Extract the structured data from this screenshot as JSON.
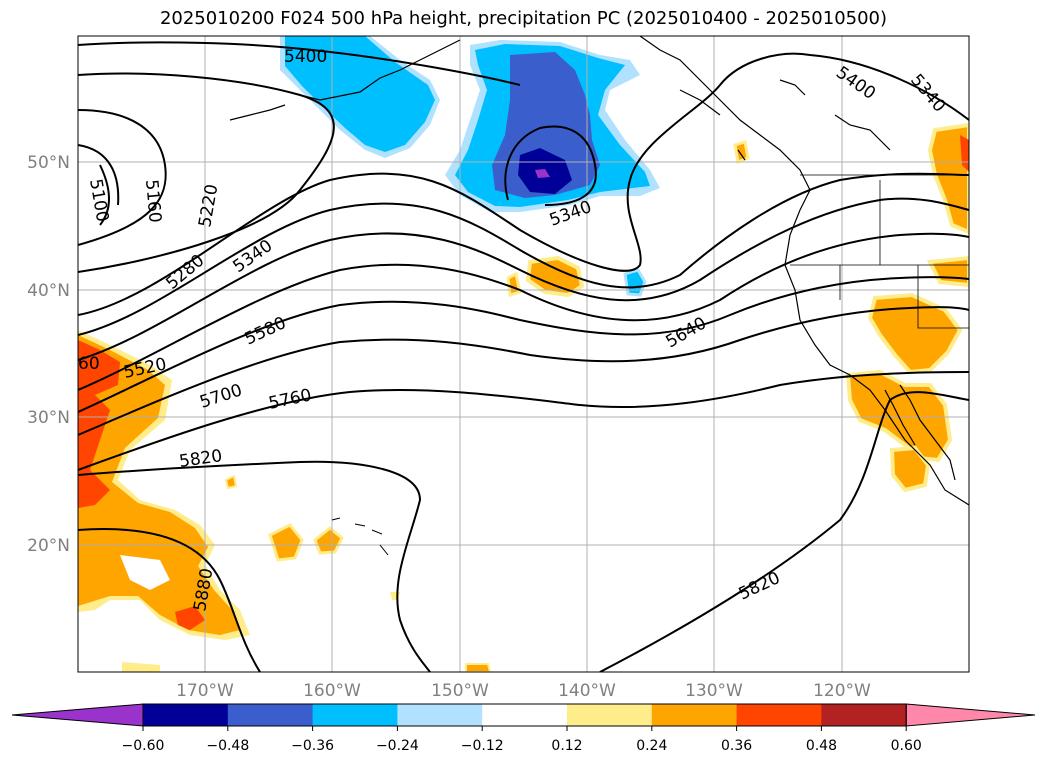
{
  "title": "2025010200 F024 500 hPa height, precipitation PC (2025010400 - 2025010500)",
  "lat_ticks": [
    "20°N",
    "30°N",
    "40°N",
    "50°N"
  ],
  "lon_ticks": [
    "170°W",
    "160°W",
    "150°W",
    "140°W",
    "130°W",
    "120°W"
  ],
  "colorbar": {
    "ticks": [
      "−0.60",
      "−0.48",
      "−0.36",
      "−0.24",
      "−0.12",
      "0.12",
      "0.24",
      "0.36",
      "0.48",
      "0.60"
    ],
    "colors": [
      "#9933cc",
      "#000099",
      "#3a5fcd",
      "#00bfff",
      "#b0e2ff",
      "#ffffff",
      "#ffec8b",
      "#ffa500",
      "#ff4500",
      "#b22222",
      "#ff88aa"
    ]
  },
  "contour_labels": [
    "5400",
    "5340",
    "5100",
    "5160",
    "5220",
    "5340",
    "5280",
    "5400",
    "5340",
    "5580",
    "5640",
    "60",
    "5520",
    "5700",
    "5760",
    "5820",
    "5880",
    "5820"
  ]
}
